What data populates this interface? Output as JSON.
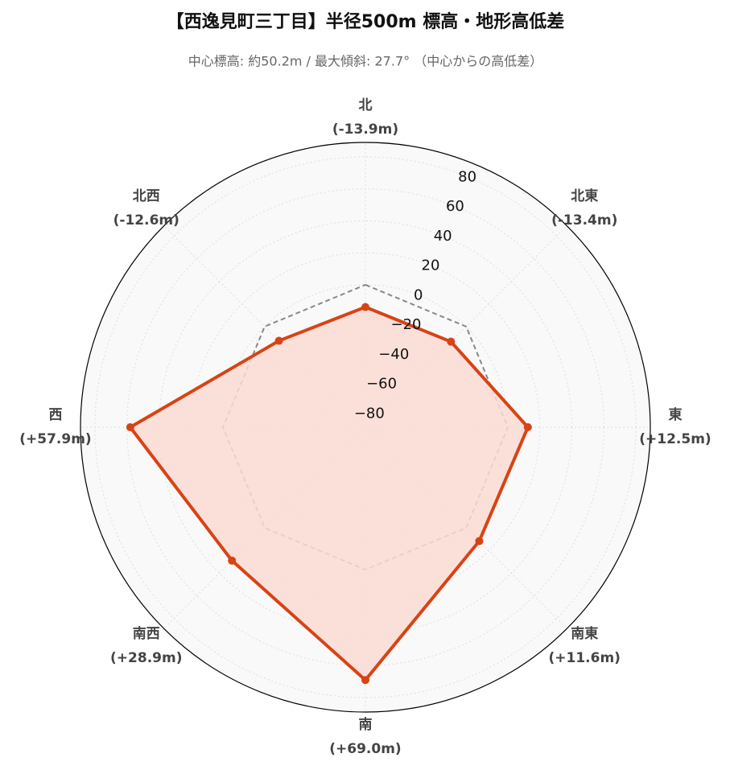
{
  "chart_data": {
    "type": "radar",
    "title": "【西逸見町三丁目】半径500m 標高・地形高低差",
    "subtitle": "中心標高: 約50.2m / 最大傾斜: 27.7° （中心からの高低差）",
    "categories": [
      "北",
      "北東",
      "東",
      "南東",
      "南",
      "南西",
      "西",
      "北西"
    ],
    "values": [
      -13.9,
      -13.4,
      12.5,
      11.6,
      69.0,
      28.9,
      57.9,
      -12.6
    ],
    "value_labels": [
      "(-13.9m)",
      "(-13.4m)",
      "(+12.5m)",
      "(+11.6m)",
      "(+69.0m)",
      "(+28.9m)",
      "(+57.9m)",
      "(-12.6m)"
    ],
    "color": "#d84315",
    "fill_color": "#fbdcd4",
    "reference_value": 0,
    "ylim": [
      -89,
      89
    ],
    "yticks": [
      {
        "value": -80,
        "label": "−80"
      },
      {
        "value": -60,
        "label": "−60"
      },
      {
        "value": -40,
        "label": "−40"
      },
      {
        "value": -20,
        "label": "−20"
      },
      0,
      20,
      40,
      60,
      80
    ],
    "grid": true
  }
}
